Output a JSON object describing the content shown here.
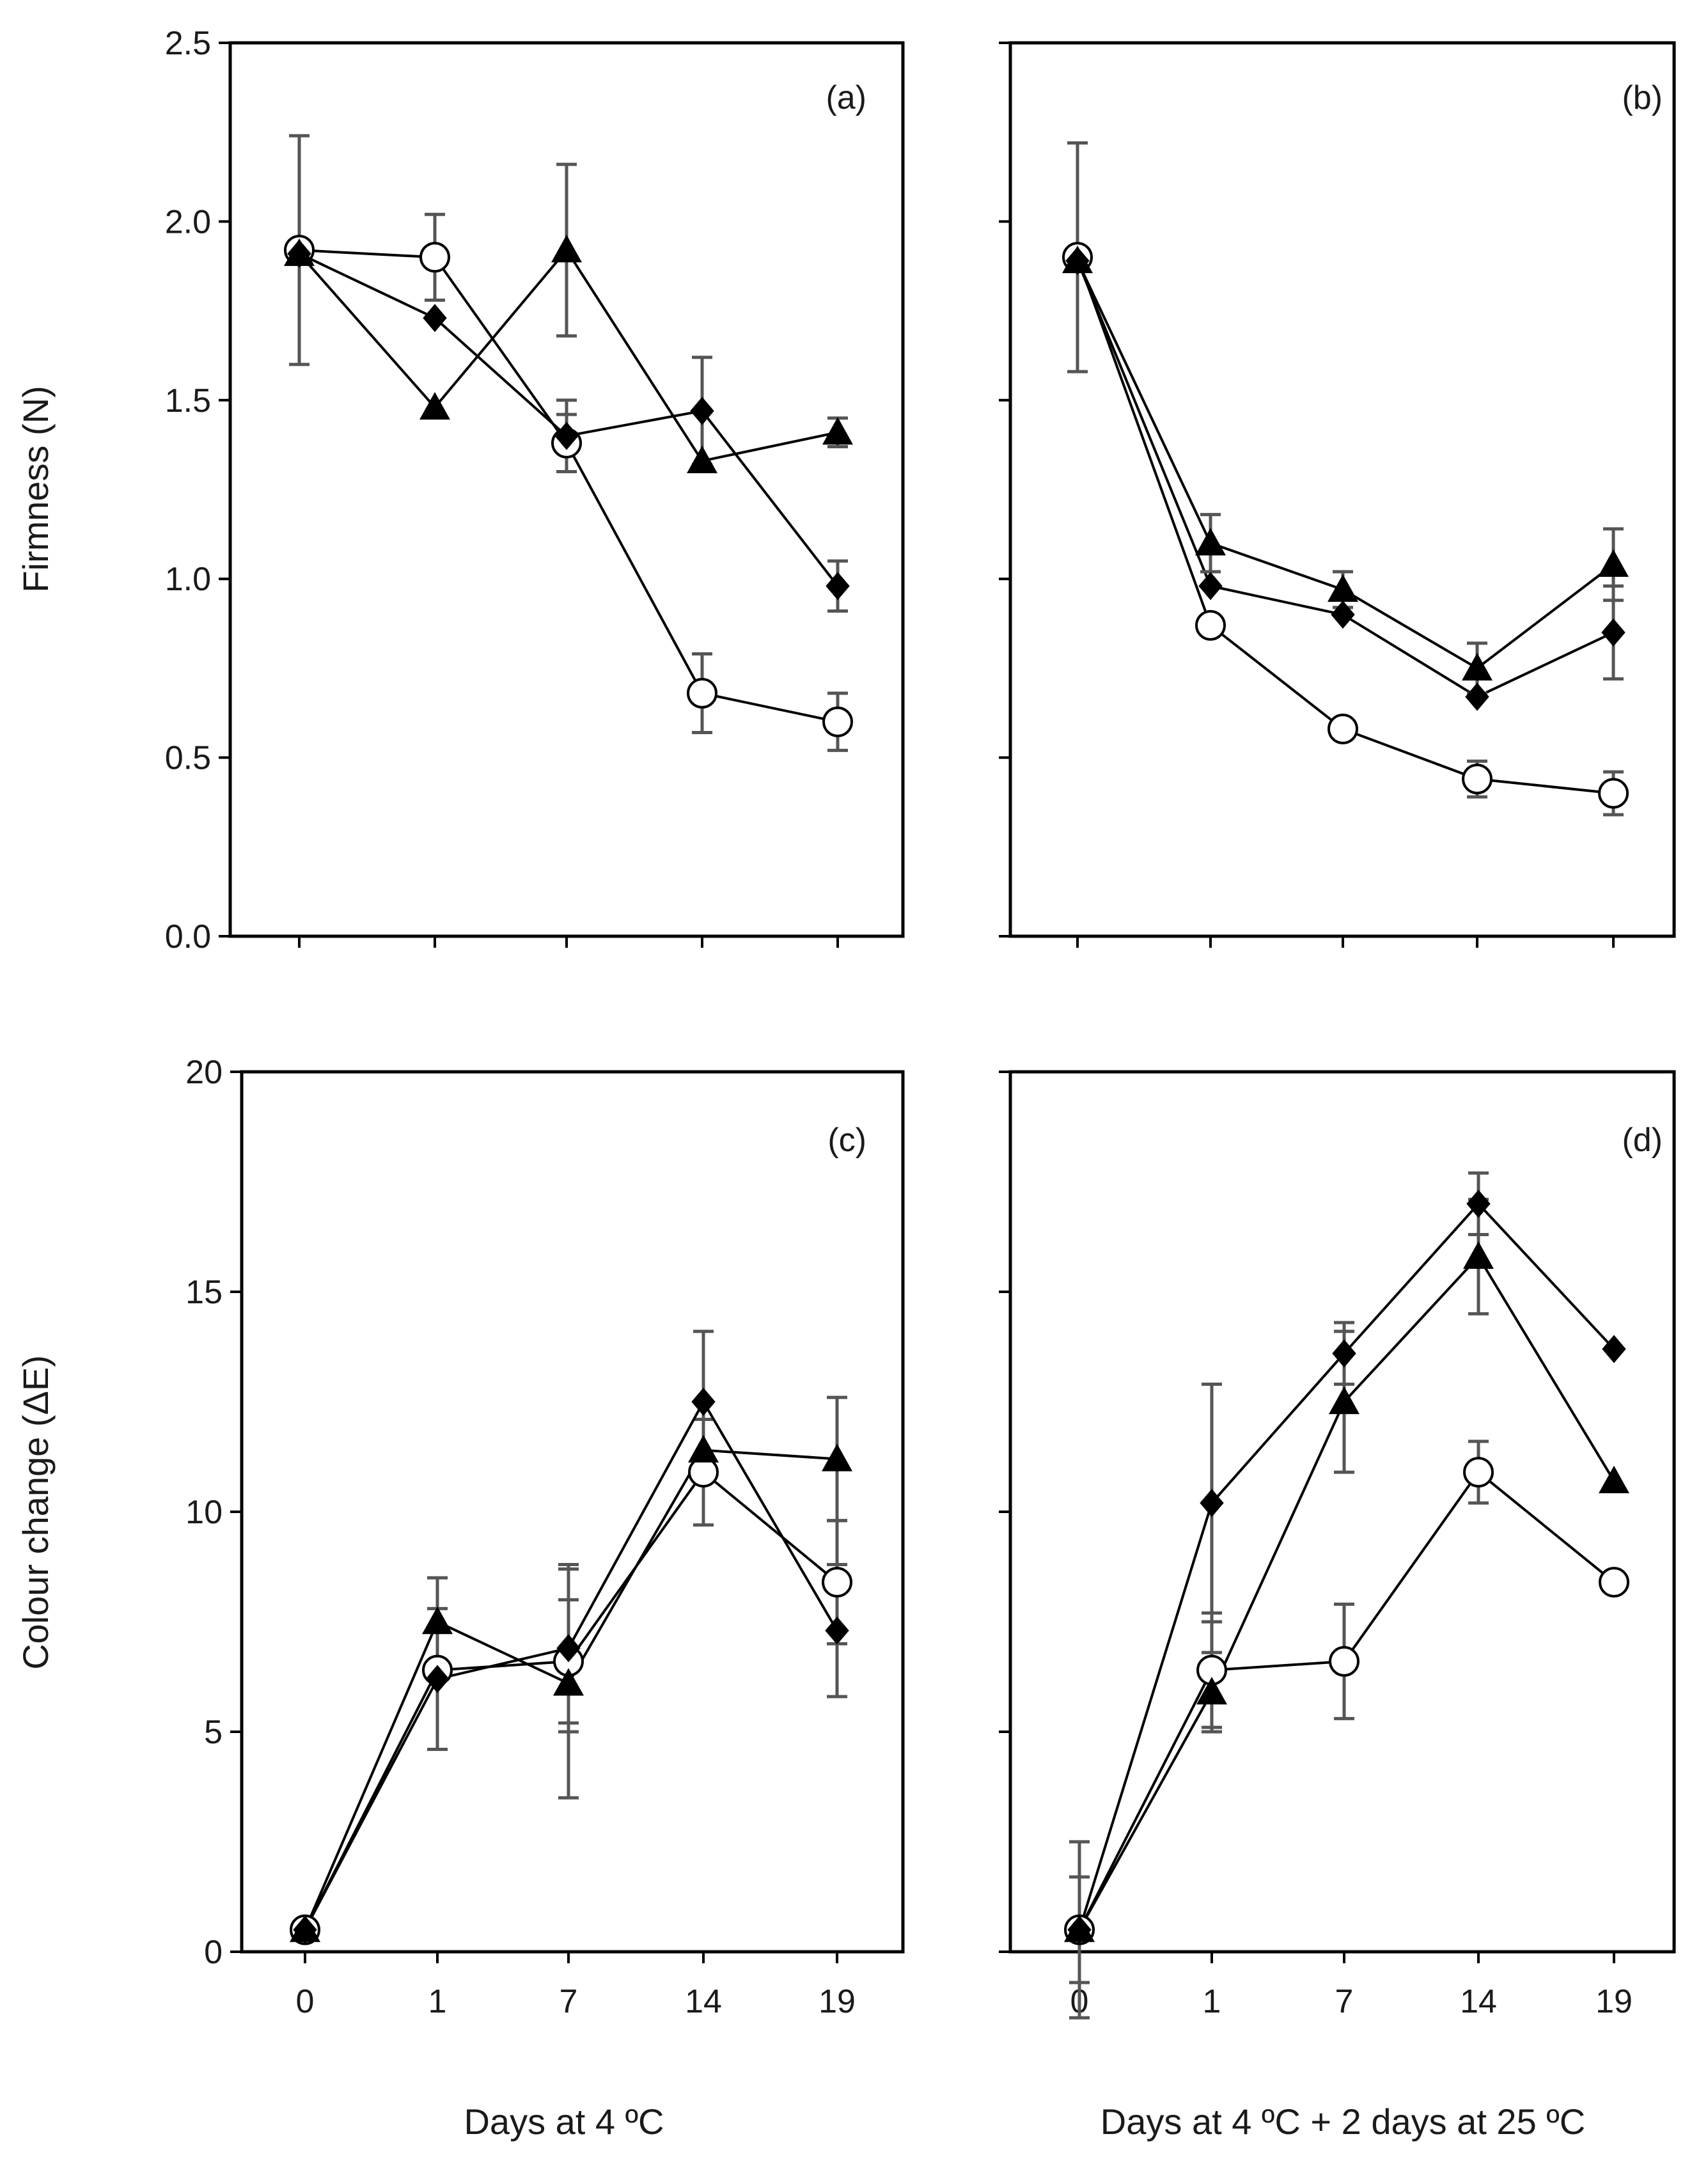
{
  "chart_data": [
    {
      "id": "a",
      "type": "line",
      "panel_label": "(a)",
      "categories": [
        "0",
        "1",
        "7",
        "14",
        "19"
      ],
      "ylabel": "Firmness (N)",
      "ylim": [
        0,
        2.5
      ],
      "yticks": [
        "0.0",
        "0.5",
        "1.0",
        "1.5",
        "2.0",
        "2.5"
      ],
      "series": [
        {
          "name": "open circle",
          "marker": "circle",
          "values": [
            1.92,
            1.9,
            1.38,
            0.68,
            0.6
          ],
          "errors": [
            0.32,
            0.12,
            0.08,
            0.11,
            0.08
          ]
        },
        {
          "name": "filled diamond",
          "marker": "diamond",
          "values": [
            1.91,
            1.73,
            1.4,
            1.47,
            0.98
          ],
          "errors": [
            0.0,
            0.0,
            0.1,
            0.15,
            0.07
          ]
        },
        {
          "name": "filled triangle",
          "marker": "triangle",
          "values": [
            1.91,
            1.48,
            1.92,
            1.33,
            1.41
          ],
          "errors": [
            0.0,
            0.0,
            0.24,
            0.0,
            0.04
          ]
        }
      ]
    },
    {
      "id": "b",
      "type": "line",
      "panel_label": "(b)",
      "categories": [
        "0",
        "1",
        "7",
        "14",
        "19"
      ],
      "ylim": [
        0,
        2.5
      ],
      "series": [
        {
          "name": "open circle",
          "marker": "circle",
          "values": [
            1.9,
            0.87,
            0.58,
            0.44,
            0.4
          ],
          "errors": [
            0.32,
            0.0,
            0.0,
            0.05,
            0.06
          ]
        },
        {
          "name": "filled diamond",
          "marker": "diamond",
          "values": [
            1.89,
            0.98,
            0.9,
            0.67,
            0.85
          ],
          "errors": [
            0.0,
            0.0,
            0.0,
            0.0,
            0.13
          ]
        },
        {
          "name": "filled triangle",
          "marker": "triangle",
          "values": [
            1.89,
            1.1,
            0.97,
            0.75,
            1.04
          ],
          "errors": [
            0.0,
            0.08,
            0.05,
            0.07,
            0.1
          ]
        }
      ]
    },
    {
      "id": "c",
      "type": "line",
      "panel_label": "(c)",
      "categories": [
        "0",
        "1",
        "7",
        "14",
        "19"
      ],
      "ylabel": "Colour change  (ΔE)",
      "xlabel": "Days at 4 ºC",
      "ylim": [
        0,
        20
      ],
      "yticks": [
        "0",
        "5",
        "10",
        "15",
        "20"
      ],
      "series": [
        {
          "name": "open circle",
          "marker": "circle",
          "values": [
            0.5,
            6.4,
            6.6,
            10.9,
            8.4
          ],
          "errors": [
            0.0,
            0.0,
            1.4,
            1.2,
            1.4
          ]
        },
        {
          "name": "filled diamond",
          "marker": "diamond",
          "values": [
            0.5,
            6.2,
            6.9,
            12.5,
            7.3
          ],
          "errors": [
            0.0,
            1.6,
            1.9,
            1.6,
            1.5
          ]
        },
        {
          "name": "filled triangle",
          "marker": "triangle",
          "values": [
            0.5,
            7.5,
            6.1,
            11.4,
            11.2
          ],
          "errors": [
            0.0,
            1.0,
            2.6,
            0.0,
            1.4
          ]
        }
      ]
    },
    {
      "id": "d",
      "type": "line",
      "panel_label": "(d)",
      "categories": [
        "0",
        "1",
        "7",
        "14",
        "19"
      ],
      "xlabel": "Days at 4 ºC + 2 days at 25 ºC",
      "ylim": [
        0,
        20
      ],
      "series": [
        {
          "name": "open circle",
          "marker": "circle",
          "values": [
            0.5,
            6.4,
            6.6,
            10.9,
            8.4
          ],
          "errors": [
            2.0,
            1.3,
            1.3,
            0.7,
            0.0
          ]
        },
        {
          "name": "filled diamond",
          "marker": "diamond",
          "values": [
            0.5,
            10.2,
            13.6,
            17.0,
            13.7
          ],
          "errors": [
            1.2,
            2.7,
            0.7,
            0.7,
            0.0
          ]
        },
        {
          "name": "filled triangle",
          "marker": "triangle",
          "values": [
            0.5,
            5.9,
            12.5,
            15.8,
            10.7
          ],
          "errors": [
            0.0,
            0.9,
            1.6,
            1.3,
            0.0
          ]
        }
      ]
    }
  ]
}
